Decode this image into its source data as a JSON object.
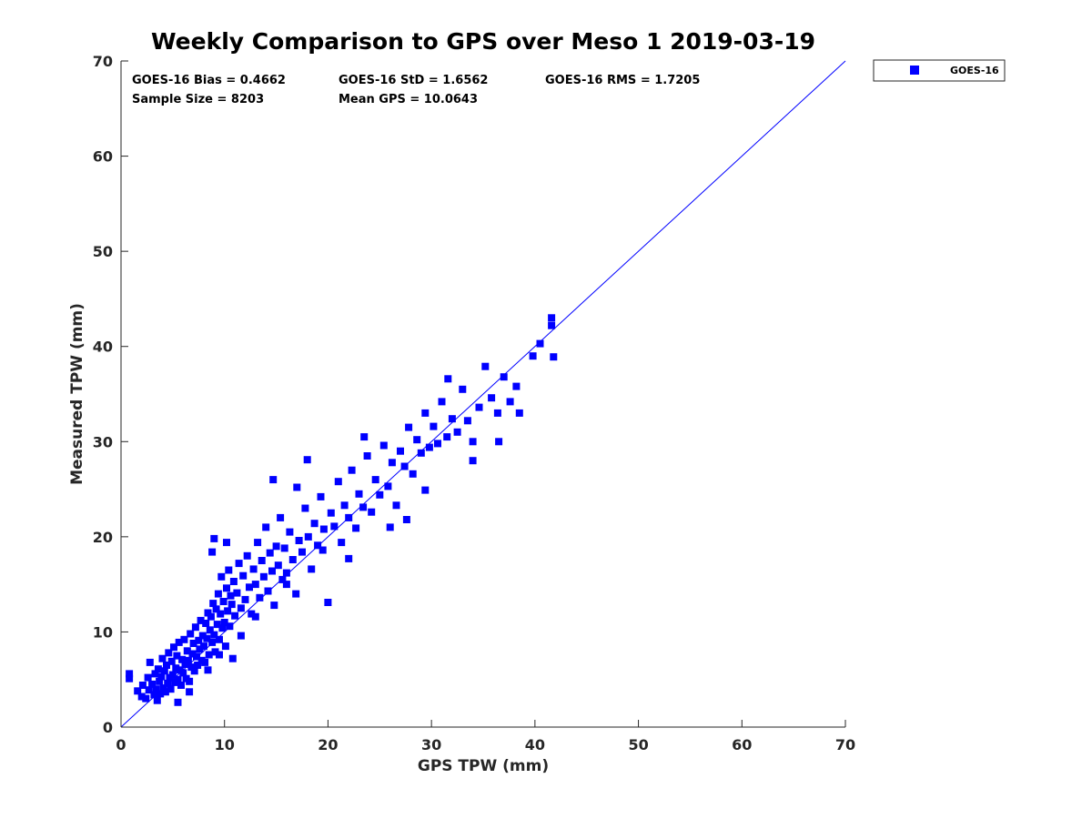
{
  "chart_data": {
    "type": "scatter",
    "title": "Weekly Comparison to GPS over Meso 1 2019-03-19",
    "xlabel": "GPS TPW (mm)",
    "ylabel": "Measured TPW (mm)",
    "xlim": [
      0,
      70
    ],
    "ylim": [
      0,
      70
    ],
    "xticks": [
      0,
      10,
      20,
      30,
      40,
      50,
      60,
      70
    ],
    "yticks": [
      0,
      10,
      20,
      30,
      40,
      50,
      60,
      70
    ],
    "xtick_labels": [
      "0",
      "10",
      "20",
      "30",
      "40",
      "50",
      "60",
      "70"
    ],
    "ytick_labels": [
      "0",
      "10",
      "20",
      "30",
      "40",
      "50",
      "60",
      "70"
    ],
    "grid": false,
    "legend_position": "outside-top-right",
    "stats": {
      "bias": "GOES-16 Bias = 0.4662",
      "std": "GOES-16 StD = 1.6562",
      "rms": "GOES-16 RMS = 1.7205",
      "sample_size": "Sample Size = 8203",
      "mean_gps": "Mean GPS = 10.0643"
    },
    "reference_line": {
      "name": "1:1",
      "x": [
        0,
        70
      ],
      "y": [
        0,
        70
      ],
      "color": "#0000ff"
    },
    "series": [
      {
        "name": "GOES-16",
        "color": "#0000ff",
        "marker": "square",
        "points": [
          [
            0.8,
            5.6
          ],
          [
            0.8,
            5.1
          ],
          [
            1.6,
            3.8
          ],
          [
            2.0,
            3.2
          ],
          [
            2.1,
            4.4
          ],
          [
            2.4,
            3.0
          ],
          [
            2.6,
            5.2
          ],
          [
            2.7,
            3.9
          ],
          [
            2.8,
            6.8
          ],
          [
            3.0,
            4.5
          ],
          [
            3.2,
            3.4
          ],
          [
            3.3,
            5.6
          ],
          [
            3.4,
            4.0
          ],
          [
            3.5,
            2.8
          ],
          [
            3.6,
            6.1
          ],
          [
            3.7,
            4.8
          ],
          [
            3.8,
            3.5
          ],
          [
            3.9,
            5.3
          ],
          [
            4.0,
            7.2
          ],
          [
            4.1,
            4.1
          ],
          [
            4.2,
            5.9
          ],
          [
            4.3,
            3.7
          ],
          [
            4.4,
            6.5
          ],
          [
            4.5,
            4.6
          ],
          [
            4.6,
            7.8
          ],
          [
            4.7,
            5.2
          ],
          [
            4.8,
            4.0
          ],
          [
            4.9,
            6.9
          ],
          [
            5.0,
            5.5
          ],
          [
            5.1,
            8.4
          ],
          [
            5.2,
            4.7
          ],
          [
            5.3,
            6.2
          ],
          [
            5.4,
            7.5
          ],
          [
            5.5,
            5.0
          ],
          [
            5.6,
            8.9
          ],
          [
            5.7,
            6.0
          ],
          [
            5.8,
            4.4
          ],
          [
            5.9,
            7.1
          ],
          [
            6.0,
            5.7
          ],
          [
            6.1,
            9.2
          ],
          [
            6.2,
            6.6
          ],
          [
            6.3,
            5.1
          ],
          [
            6.4,
            8.0
          ],
          [
            6.5,
            7.0
          ],
          [
            6.6,
            4.8
          ],
          [
            6.7,
            9.8
          ],
          [
            6.8,
            6.3
          ],
          [
            6.9,
            7.7
          ],
          [
            7.0,
            8.8
          ],
          [
            7.1,
            5.9
          ],
          [
            7.2,
            10.5
          ],
          [
            7.3,
            7.4
          ],
          [
            7.4,
            6.5
          ],
          [
            7.5,
            9.1
          ],
          [
            7.6,
            8.2
          ],
          [
            7.7,
            11.2
          ],
          [
            7.8,
            7.0
          ],
          [
            7.9,
            9.6
          ],
          [
            8.0,
            8.5
          ],
          [
            8.1,
            6.8
          ],
          [
            8.2,
            10.9
          ],
          [
            8.3,
            9.3
          ],
          [
            8.4,
            12.0
          ],
          [
            8.5,
            7.6
          ],
          [
            8.6,
            10.2
          ],
          [
            8.7,
            11.6
          ],
          [
            8.8,
            8.9
          ],
          [
            8.9,
            13.0
          ],
          [
            9.0,
            9.7
          ],
          [
            9.1,
            7.9
          ],
          [
            9.2,
            12.4
          ],
          [
            9.3,
            10.8
          ],
          [
            9.4,
            14.0
          ],
          [
            9.5,
            9.2
          ],
          [
            9.6,
            11.9
          ],
          [
            9.7,
            15.8
          ],
          [
            9.8,
            10.4
          ],
          [
            9.9,
            13.2
          ],
          [
            10.0,
            11.0
          ],
          [
            10.1,
            8.5
          ],
          [
            10.2,
            14.6
          ],
          [
            10.3,
            12.2
          ],
          [
            10.4,
            16.5
          ],
          [
            10.5,
            10.6
          ],
          [
            10.6,
            13.8
          ],
          [
            10.7,
            12.9
          ],
          [
            10.8,
            7.2
          ],
          [
            10.9,
            15.3
          ],
          [
            11.0,
            11.7
          ],
          [
            11.2,
            14.1
          ],
          [
            11.4,
            17.2
          ],
          [
            11.6,
            12.5
          ],
          [
            11.8,
            15.9
          ],
          [
            12.0,
            13.4
          ],
          [
            12.2,
            18.0
          ],
          [
            12.4,
            14.7
          ],
          [
            12.6,
            11.9
          ],
          [
            12.8,
            16.6
          ],
          [
            13.0,
            15.0
          ],
          [
            13.2,
            19.4
          ],
          [
            13.4,
            13.6
          ],
          [
            13.6,
            17.5
          ],
          [
            13.8,
            15.8
          ],
          [
            14.0,
            21.0
          ],
          [
            14.2,
            14.3
          ],
          [
            14.4,
            18.3
          ],
          [
            14.6,
            16.4
          ],
          [
            14.8,
            12.8
          ],
          [
            15.0,
            19.0
          ],
          [
            15.2,
            17.0
          ],
          [
            15.4,
            22.0
          ],
          [
            15.6,
            15.5
          ],
          [
            15.8,
            18.8
          ],
          [
            16.0,
            16.2
          ],
          [
            16.3,
            20.5
          ],
          [
            16.6,
            17.6
          ],
          [
            16.9,
            14.0
          ],
          [
            17.2,
            19.6
          ],
          [
            17.5,
            18.4
          ],
          [
            17.8,
            23.0
          ],
          [
            18.1,
            20.0
          ],
          [
            18.0,
            28.1
          ],
          [
            18.4,
            16.6
          ],
          [
            18.7,
            21.4
          ],
          [
            19.0,
            19.1
          ],
          [
            19.3,
            24.2
          ],
          [
            19.6,
            20.8
          ],
          [
            20.0,
            13.1
          ],
          [
            20.3,
            22.5
          ],
          [
            20.6,
            21.1
          ],
          [
            21.0,
            25.8
          ],
          [
            21.3,
            19.4
          ],
          [
            21.6,
            23.3
          ],
          [
            22.0,
            22.0
          ],
          [
            22.3,
            27.0
          ],
          [
            22.7,
            20.9
          ],
          [
            23.0,
            24.5
          ],
          [
            23.4,
            23.1
          ],
          [
            23.8,
            28.5
          ],
          [
            24.2,
            22.6
          ],
          [
            24.6,
            26.0
          ],
          [
            25.0,
            24.4
          ],
          [
            25.4,
            29.6
          ],
          [
            25.8,
            25.3
          ],
          [
            26.2,
            27.8
          ],
          [
            26.6,
            23.3
          ],
          [
            27.0,
            29.0
          ],
          [
            27.4,
            27.4
          ],
          [
            27.8,
            31.5
          ],
          [
            28.2,
            26.6
          ],
          [
            28.6,
            30.2
          ],
          [
            29.0,
            28.8
          ],
          [
            29.4,
            33.0
          ],
          [
            29.8,
            29.4
          ],
          [
            30.2,
            31.6
          ],
          [
            30.6,
            29.8
          ],
          [
            31.0,
            34.2
          ],
          [
            31.5,
            30.5
          ],
          [
            32.0,
            32.4
          ],
          [
            32.5,
            31.0
          ],
          [
            33.0,
            35.5
          ],
          [
            33.5,
            32.2
          ],
          [
            34.0,
            30.0
          ],
          [
            34.6,
            33.6
          ],
          [
            35.2,
            37.9
          ],
          [
            35.8,
            34.6
          ],
          [
            36.4,
            33.0
          ],
          [
            37.0,
            36.8
          ],
          [
            37.6,
            34.2
          ],
          [
            38.2,
            35.8
          ],
          [
            38.5,
            33.0
          ],
          [
            39.8,
            39.0
          ],
          [
            40.5,
            40.3
          ],
          [
            41.6,
            43.0
          ],
          [
            41.6,
            42.2
          ],
          [
            41.8,
            38.9
          ],
          [
            14.7,
            26.0
          ],
          [
            17.0,
            25.2
          ],
          [
            19.5,
            18.6
          ],
          [
            23.5,
            30.5
          ],
          [
            29.4,
            24.9
          ],
          [
            31.6,
            36.6
          ],
          [
            5.5,
            2.6
          ],
          [
            6.6,
            3.7
          ],
          [
            8.4,
            6.0
          ],
          [
            9.5,
            7.6
          ],
          [
            11.6,
            9.6
          ],
          [
            13.0,
            11.6
          ],
          [
            16.0,
            15.0
          ],
          [
            22.0,
            17.7
          ],
          [
            26.0,
            21.0
          ],
          [
            27.6,
            21.8
          ],
          [
            34.0,
            28.0
          ],
          [
            36.5,
            30.0
          ],
          [
            9.0,
            19.8
          ],
          [
            8.8,
            18.4
          ],
          [
            10.2,
            19.4
          ]
        ]
      }
    ]
  }
}
